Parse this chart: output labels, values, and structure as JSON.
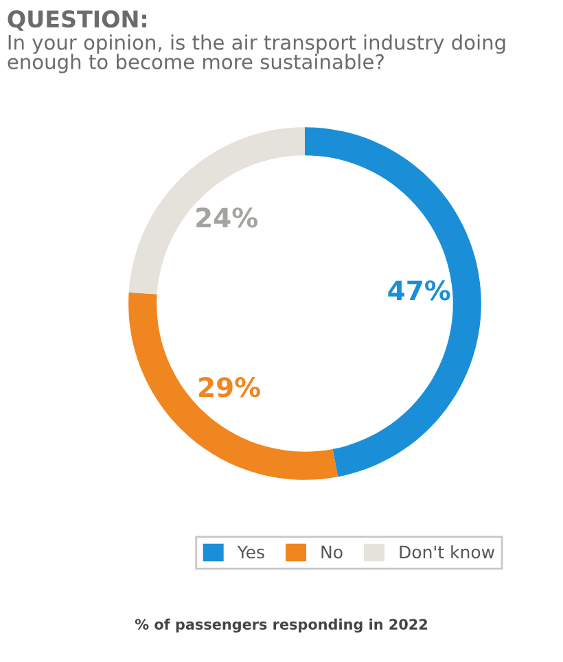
{
  "chart_data": {
    "type": "donut",
    "title": "QUESTION:",
    "subtitle": "In your opinion, is the air transport industry doing enough to become more sustainable?",
    "categories": [
      "Yes",
      "No",
      "Don't know"
    ],
    "values": [
      47,
      29,
      24
    ],
    "colors": [
      "#1a8fd8",
      "#f0861f",
      "#e4e2da"
    ],
    "value_labels": [
      "47%",
      "29%",
      "24%"
    ],
    "legend": "bottom",
    "annotations": [
      "% of passengers responding in 2022"
    ]
  }
}
